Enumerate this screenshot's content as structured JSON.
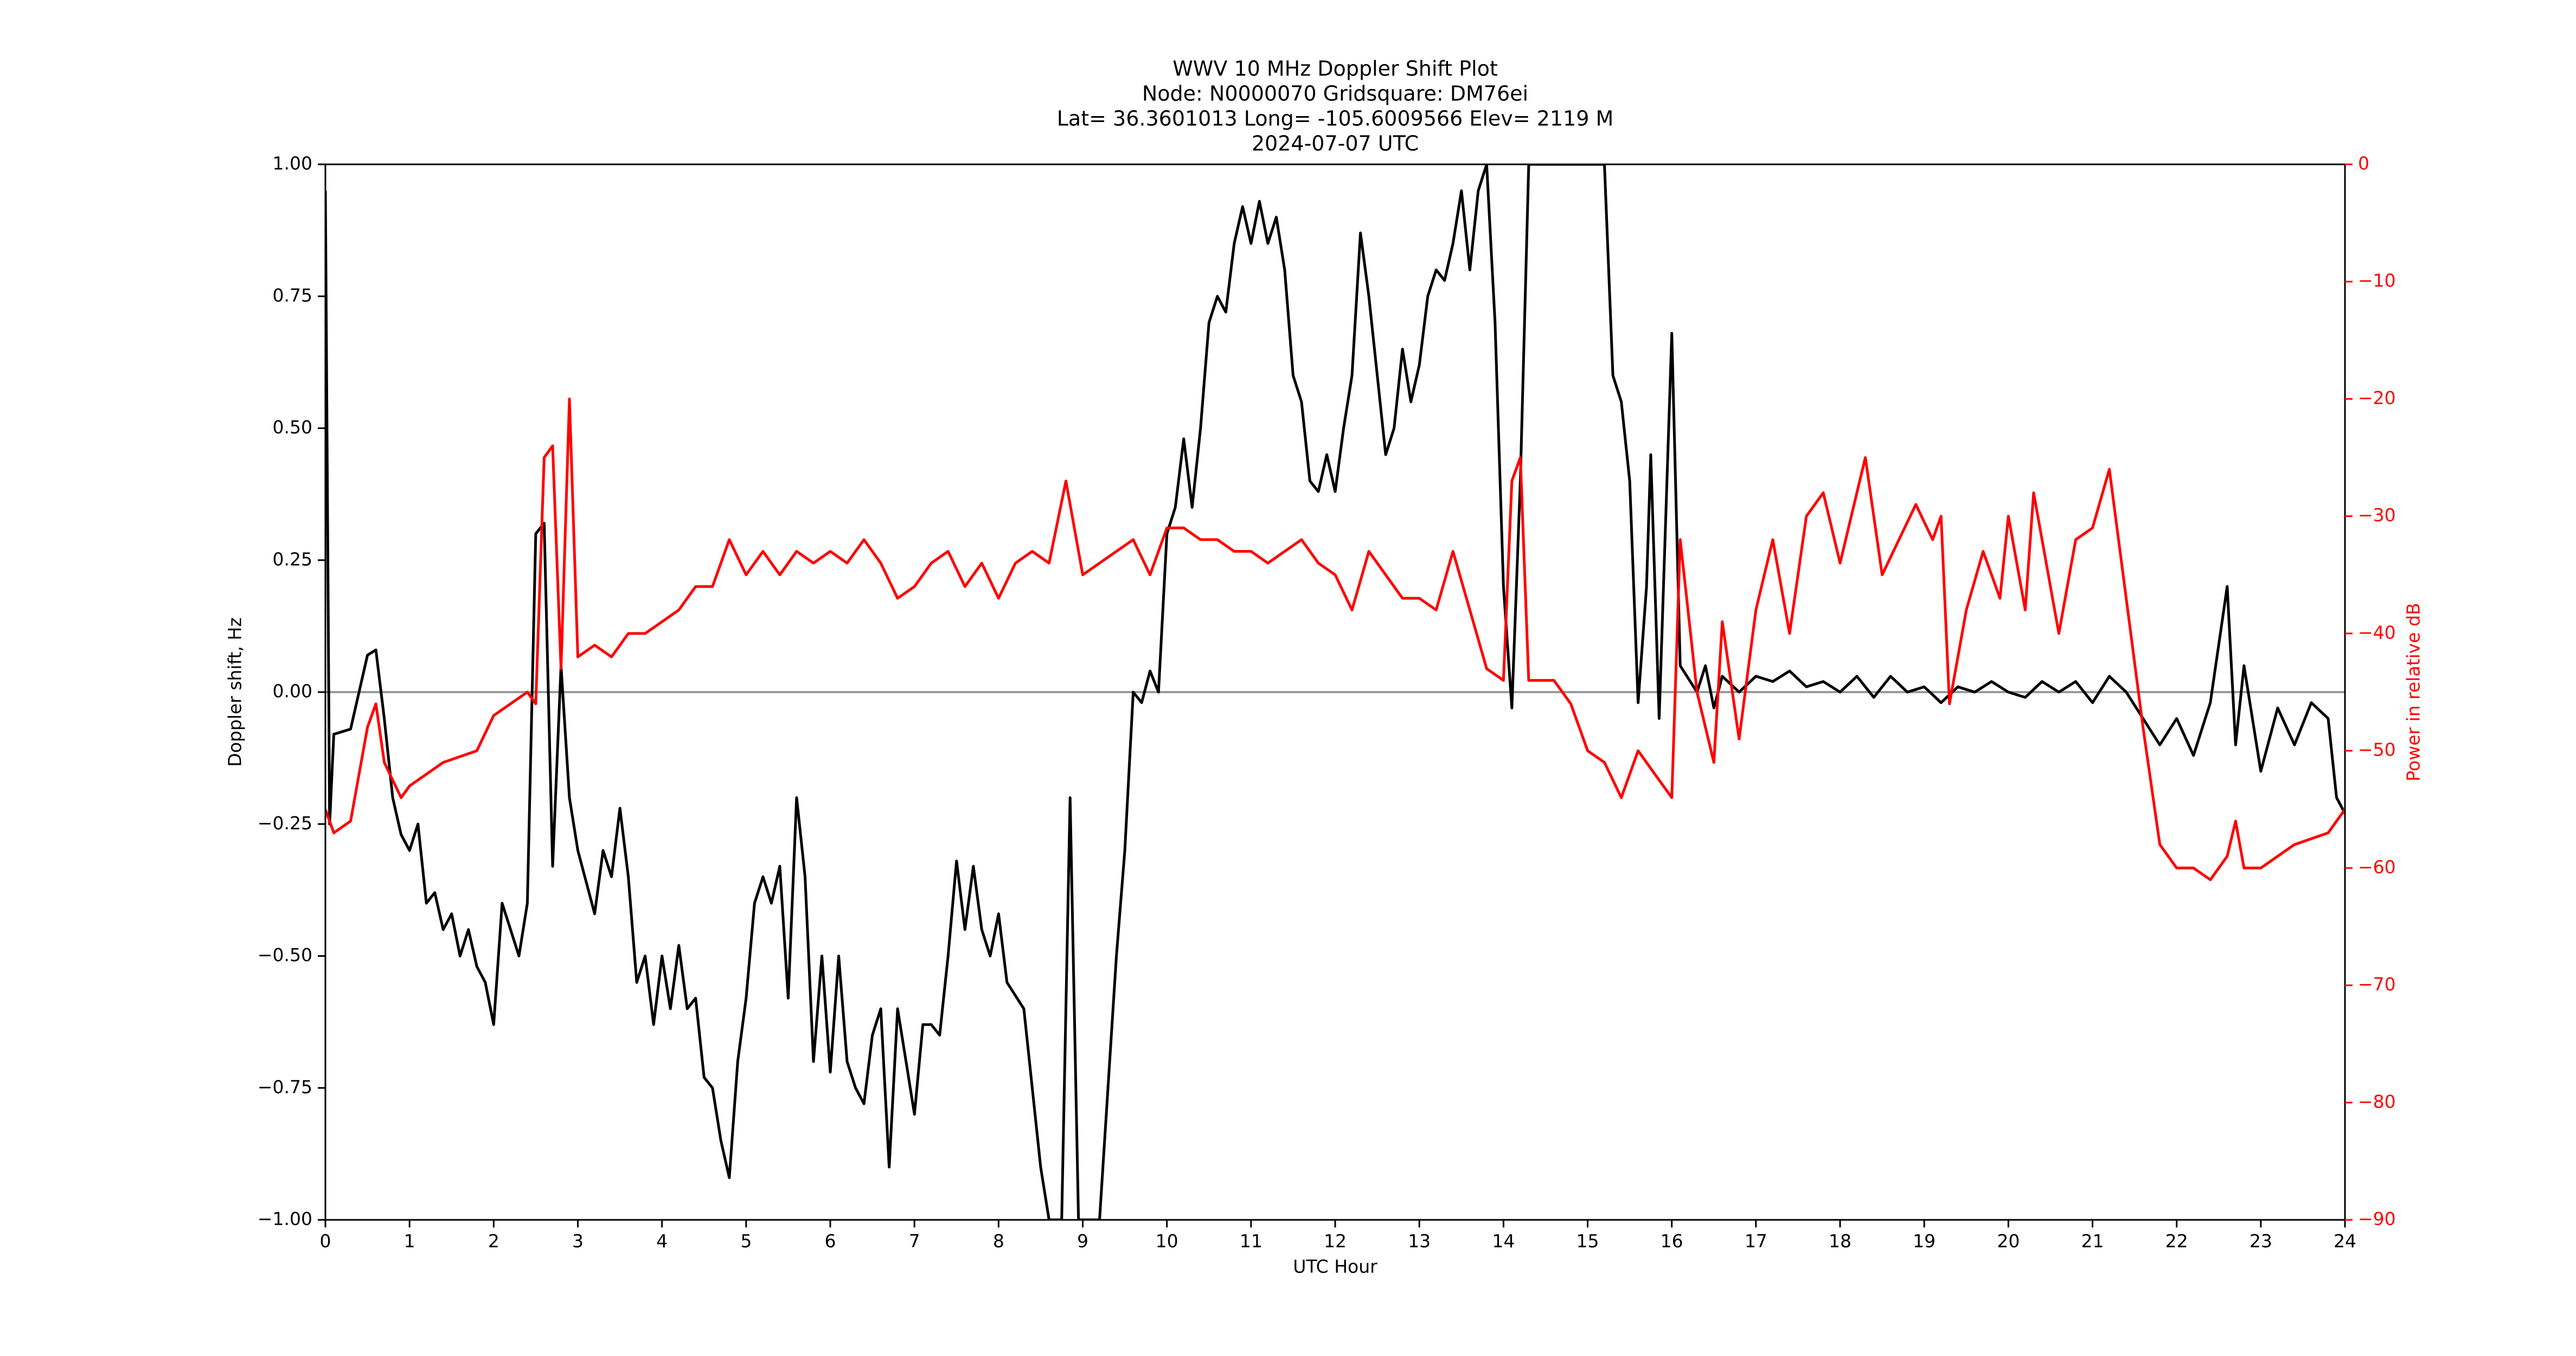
{
  "chart_data": {
    "type": "line",
    "title": [
      "WWV 10 MHz Doppler Shift Plot",
      "Node:  N0000070     Gridsquare:  DM76ei",
      "Lat= 36.3601013    Long= -105.6009566    Elev= 2119 M",
      "2024-07-07  UTC"
    ],
    "xlabel": "UTC Hour",
    "ylabel": "Doppler shift, Hz",
    "y2label": "Power in relative dB",
    "xlim": [
      0,
      24
    ],
    "xticks": [
      0,
      1,
      2,
      3,
      4,
      5,
      6,
      7,
      8,
      9,
      10,
      11,
      12,
      13,
      14,
      15,
      16,
      17,
      18,
      19,
      20,
      21,
      22,
      23,
      24
    ],
    "ylim": [
      -1,
      1
    ],
    "yticks": [
      {
        "value": -1,
        "label": "−1.00"
      },
      {
        "value": -0.75,
        "label": "−0.75"
      },
      {
        "value": -0.5,
        "label": "−0.50"
      },
      {
        "value": -0.25,
        "label": "−0.25"
      },
      {
        "value": 0,
        "label": "0.00"
      },
      {
        "value": 0.25,
        "label": "0.25"
      },
      {
        "value": 0.5,
        "label": "0.50"
      },
      {
        "value": 0.75,
        "label": "0.75"
      },
      {
        "value": 1,
        "label": "1.00"
      }
    ],
    "y2lim": [
      -90,
      0
    ],
    "y2ticks": [
      {
        "value": -90,
        "label": "−90"
      },
      {
        "value": -80,
        "label": "−80"
      },
      {
        "value": -70,
        "label": "−70"
      },
      {
        "value": -60,
        "label": "−60"
      },
      {
        "value": -50,
        "label": "−50"
      },
      {
        "value": -40,
        "label": "−40"
      },
      {
        "value": -30,
        "label": "−30"
      },
      {
        "value": -20,
        "label": "−20"
      },
      {
        "value": -10,
        "label": "−10"
      },
      0
    ],
    "reference_line": 0,
    "series": [
      {
        "name": "Doppler shift",
        "color": "#000000",
        "x": [
          0,
          0.05,
          0.1,
          0.3,
          0.5,
          0.6,
          0.7,
          0.8,
          0.9,
          1.0,
          1.1,
          1.2,
          1.3,
          1.4,
          1.5,
          1.6,
          1.7,
          1.8,
          1.9,
          2.0,
          2.1,
          2.2,
          2.3,
          2.4,
          2.5,
          2.6,
          2.7,
          2.8,
          2.9,
          3.0,
          3.2,
          3.3,
          3.4,
          3.5,
          3.6,
          3.7,
          3.8,
          3.9,
          4.0,
          4.1,
          4.2,
          4.3,
          4.4,
          4.5,
          4.6,
          4.7,
          4.8,
          4.9,
          5.0,
          5.1,
          5.2,
          5.3,
          5.4,
          5.5,
          5.6,
          5.7,
          5.8,
          5.9,
          6.0,
          6.1,
          6.2,
          6.3,
          6.4,
          6.5,
          6.6,
          6.7,
          6.8,
          6.9,
          7.0,
          7.1,
          7.2,
          7.3,
          7.4,
          7.5,
          7.6,
          7.7,
          7.8,
          7.9,
          8.0,
          8.1,
          8.3,
          8.5,
          8.6,
          8.75,
          8.85,
          8.95,
          9.2,
          9.4,
          9.5,
          9.6,
          9.7,
          9.8,
          9.9,
          10.0,
          10.1,
          10.2,
          10.3,
          10.4,
          10.5,
          10.6,
          10.7,
          10.8,
          10.9,
          11.0,
          11.1,
          11.2,
          11.3,
          11.4,
          11.5,
          11.6,
          11.7,
          11.8,
          11.9,
          12.0,
          12.1,
          12.2,
          12.3,
          12.4,
          12.5,
          12.6,
          12.7,
          12.8,
          12.9,
          13.0,
          13.1,
          13.2,
          13.3,
          13.4,
          13.5,
          13.6,
          13.7,
          13.8,
          13.9,
          14.0,
          14.1,
          14.2,
          14.3,
          15.2,
          15.3,
          15.4,
          15.5,
          15.6,
          15.7,
          15.75,
          15.85,
          16.0,
          16.1,
          16.3,
          16.4,
          16.5,
          16.6,
          16.8,
          17.0,
          17.2,
          17.4,
          17.6,
          17.8,
          18.0,
          18.2,
          18.4,
          18.6,
          18.8,
          19.0,
          19.2,
          19.4,
          19.6,
          19.8,
          20.0,
          20.2,
          20.4,
          20.6,
          20.8,
          21.0,
          21.2,
          21.4,
          21.6,
          21.8,
          22.0,
          22.2,
          22.4,
          22.6,
          22.7,
          22.8,
          23.0,
          23.2,
          23.4,
          23.6,
          23.8,
          23.9,
          24.0
        ],
        "values": [
          0.95,
          -0.25,
          -0.08,
          -0.07,
          0.07,
          0.08,
          -0.05,
          -0.2,
          -0.27,
          -0.3,
          -0.25,
          -0.4,
          -0.38,
          -0.45,
          -0.42,
          -0.5,
          -0.45,
          -0.52,
          -0.55,
          -0.63,
          -0.4,
          -0.45,
          -0.5,
          -0.4,
          0.3,
          0.32,
          -0.33,
          0.05,
          -0.2,
          -0.3,
          -0.42,
          -0.3,
          -0.35,
          -0.22,
          -0.35,
          -0.55,
          -0.5,
          -0.63,
          -0.5,
          -0.6,
          -0.48,
          -0.6,
          -0.58,
          -0.73,
          -0.75,
          -0.85,
          -0.92,
          -0.7,
          -0.58,
          -0.4,
          -0.35,
          -0.4,
          -0.33,
          -0.58,
          -0.2,
          -0.35,
          -0.7,
          -0.5,
          -0.72,
          -0.5,
          -0.7,
          -0.75,
          -0.78,
          -0.65,
          -0.6,
          -0.9,
          -0.6,
          -0.7,
          -0.8,
          -0.63,
          -0.63,
          -0.65,
          -0.5,
          -0.32,
          -0.45,
          -0.33,
          -0.45,
          -0.5,
          -0.42,
          -0.55,
          -0.6,
          -0.9,
          -1.0,
          -1.0,
          -0.2,
          -1.0,
          -1.0,
          -0.5,
          -0.3,
          0.0,
          -0.02,
          0.04,
          0.0,
          0.3,
          0.35,
          0.48,
          0.35,
          0.5,
          0.7,
          0.75,
          0.72,
          0.85,
          0.92,
          0.85,
          0.93,
          0.85,
          0.9,
          0.8,
          0.6,
          0.55,
          0.4,
          0.38,
          0.45,
          0.38,
          0.5,
          0.6,
          0.87,
          0.75,
          0.6,
          0.45,
          0.5,
          0.65,
          0.55,
          0.62,
          0.75,
          0.8,
          0.78,
          0.85,
          0.95,
          0.8,
          0.95,
          1.0,
          0.7,
          0.2,
          -0.03,
          0.4,
          1.0,
          1.0,
          0.6,
          0.55,
          0.4,
          -0.02,
          0.2,
          0.45,
          -0.05,
          0.68,
          0.05,
          0.0,
          0.05,
          -0.03,
          0.03,
          0.0,
          0.03,
          0.02,
          0.04,
          0.01,
          0.02,
          0.0,
          0.03,
          -0.01,
          0.03,
          0.0,
          0.01,
          -0.02,
          0.01,
          0.0,
          0.02,
          0.0,
          -0.01,
          0.02,
          0.0,
          0.02,
          -0.02,
          0.03,
          0.0,
          -0.05,
          -0.1,
          -0.05,
          -0.12,
          -0.02,
          0.2,
          -0.1,
          0.05,
          -0.15,
          -0.03,
          -0.1,
          -0.02,
          -0.05,
          -0.2,
          -0.23
        ]
      },
      {
        "name": "Power",
        "color": "#ff0000",
        "axis": "y2",
        "x": [
          0,
          0.1,
          0.3,
          0.5,
          0.6,
          0.7,
          0.9,
          1.0,
          1.4,
          1.8,
          2.0,
          2.2,
          2.4,
          2.5,
          2.6,
          2.7,
          2.8,
          2.9,
          3.0,
          3.2,
          3.4,
          3.6,
          3.8,
          4.0,
          4.2,
          4.4,
          4.6,
          4.8,
          5.0,
          5.2,
          5.4,
          5.6,
          5.8,
          6.0,
          6.2,
          6.4,
          6.6,
          6.8,
          7.0,
          7.2,
          7.4,
          7.6,
          7.8,
          8.0,
          8.2,
          8.4,
          8.6,
          8.8,
          9.0,
          9.2,
          9.4,
          9.6,
          9.8,
          10.0,
          10.2,
          10.4,
          10.6,
          10.8,
          11.0,
          11.2,
          11.4,
          11.6,
          11.8,
          12.0,
          12.2,
          12.4,
          12.6,
          12.8,
          13.0,
          13.2,
          13.4,
          13.6,
          13.8,
          14.0,
          14.1,
          14.2,
          14.3,
          14.6,
          14.8,
          15.0,
          15.2,
          15.4,
          15.6,
          15.8,
          16.0,
          16.1,
          16.3,
          16.5,
          16.6,
          16.8,
          17.0,
          17.2,
          17.4,
          17.6,
          17.8,
          18.0,
          18.2,
          18.3,
          18.5,
          18.7,
          18.9,
          19.1,
          19.2,
          19.3,
          19.5,
          19.7,
          19.9,
          20.0,
          20.2,
          20.3,
          20.6,
          20.8,
          21.0,
          21.2,
          21.4,
          21.6,
          21.8,
          22.0,
          22.2,
          22.4,
          22.6,
          22.7,
          22.8,
          23.0,
          23.4,
          23.8,
          24.0
        ],
        "values": [
          -55,
          -57,
          -56,
          -48,
          -46,
          -51,
          -54,
          -53,
          -51,
          -50,
          -47,
          -46,
          -45,
          -46,
          -25,
          -24,
          -43,
          -20,
          -42,
          -41,
          -42,
          -40,
          -40,
          -39,
          -38,
          -36,
          -36,
          -32,
          -35,
          -33,
          -35,
          -33,
          -34,
          -33,
          -34,
          -32,
          -34,
          -37,
          -36,
          -34,
          -33,
          -36,
          -34,
          -37,
          -34,
          -33,
          -34,
          -27,
          -35,
          -34,
          -33,
          -32,
          -35,
          -31,
          -31,
          -32,
          -32,
          -33,
          -33,
          -34,
          -33,
          -32,
          -34,
          -35,
          -38,
          -33,
          -35,
          -37,
          -37,
          -38,
          -33,
          -38,
          -43,
          -44,
          -27,
          -25,
          -44,
          -44,
          -46,
          -50,
          -51,
          -54,
          -50,
          -52,
          -54,
          -32,
          -45,
          -51,
          -39,
          -49,
          -38,
          -32,
          -40,
          -30,
          -28,
          -34,
          -28,
          -25,
          -35,
          -32,
          -29,
          -32,
          -30,
          -46,
          -38,
          -33,
          -37,
          -30,
          -38,
          -28,
          -40,
          -32,
          -31,
          -26,
          -37,
          -48,
          -58,
          -60,
          -60,
          -61,
          -59,
          -56,
          -60,
          -60,
          -58,
          -57,
          -55
        ]
      }
    ]
  }
}
